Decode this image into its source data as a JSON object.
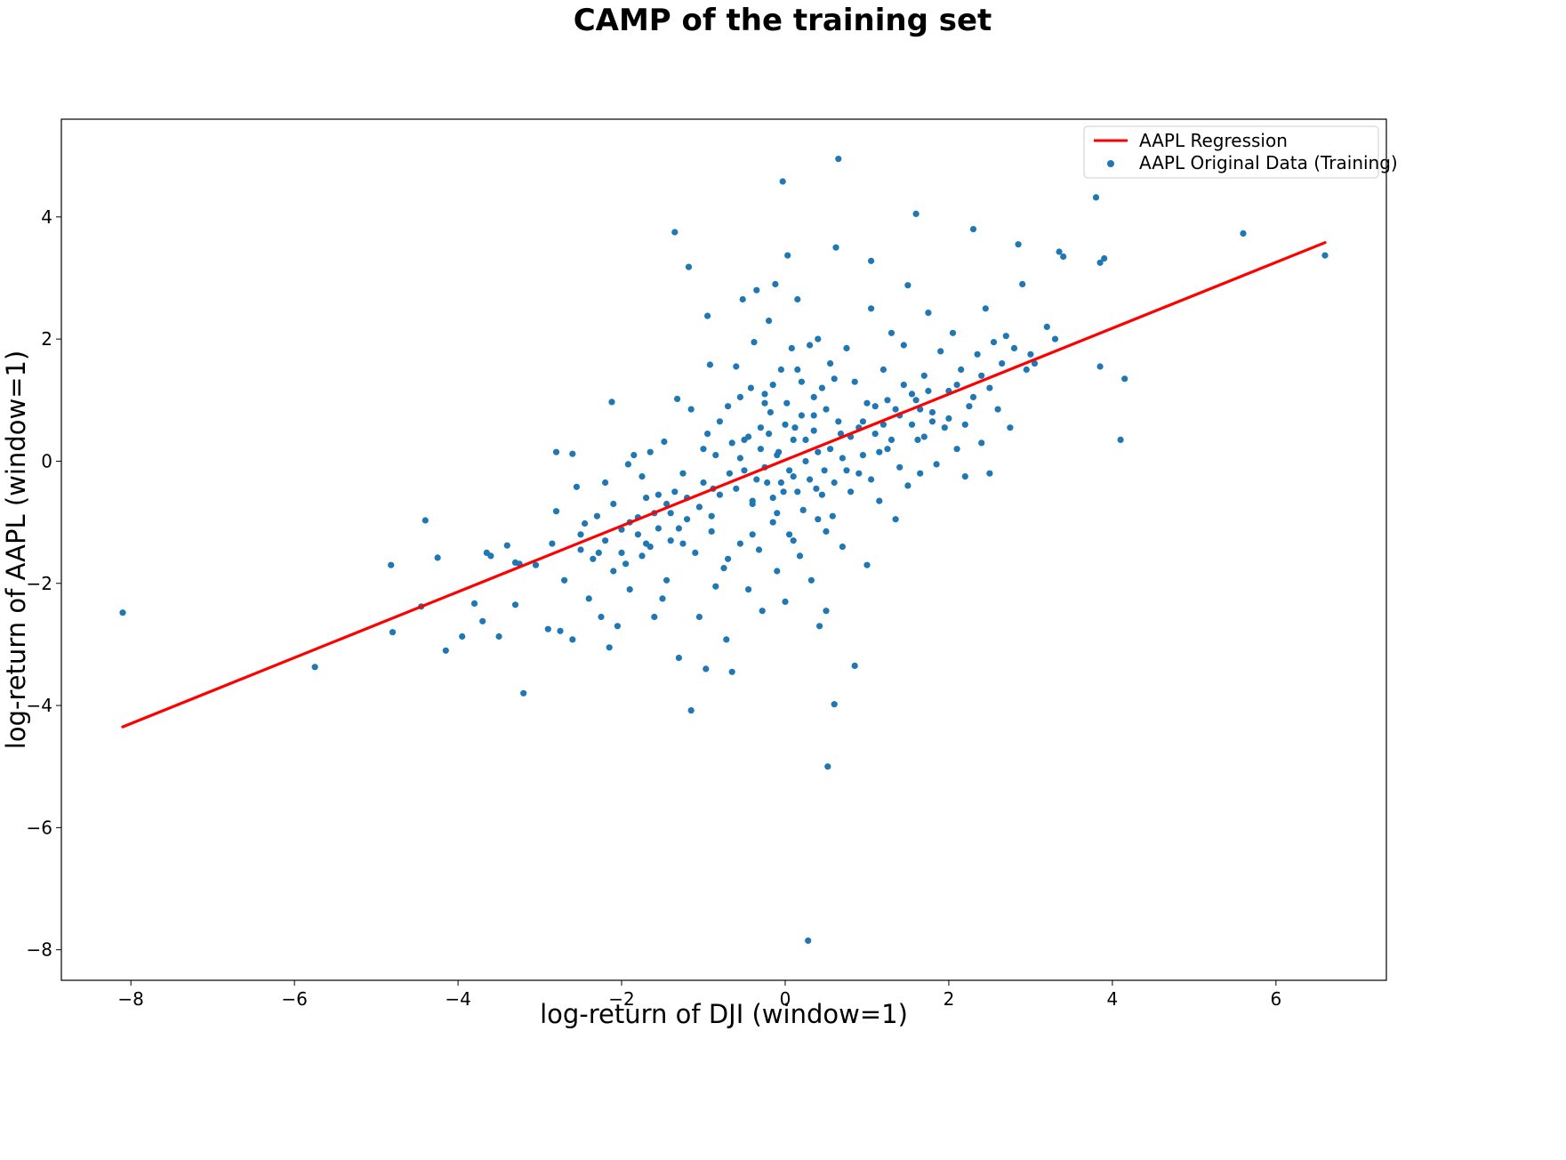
{
  "chart_data": {
    "type": "scatter",
    "title": "CAMP of the training set",
    "xlabel": "log-return of DJI (window=1)",
    "ylabel": "log-return of AAPL (window=1)",
    "xlim": [
      -8.85,
      7.35
    ],
    "ylim": [
      -8.5,
      5.6
    ],
    "xticks": [
      -8,
      -6,
      -4,
      -2,
      0,
      2,
      4,
      6
    ],
    "xtick_labels": [
      "−8",
      "−6",
      "−4",
      "−2",
      "0",
      "2",
      "4",
      "6"
    ],
    "yticks": [
      -8,
      -6,
      -4,
      -2,
      0,
      2,
      4
    ],
    "ytick_labels": [
      "−8",
      "−6",
      "−4",
      "−2",
      "0",
      "2",
      "4"
    ],
    "grid": false,
    "legend_position": "top-right",
    "series": [
      {
        "name": "AAPL Regression",
        "kind": "line",
        "color": "#ff0000",
        "x": [
          -8.1,
          6.6
        ],
        "y": [
          -4.35,
          3.58
        ]
      },
      {
        "name": "AAPL Original Data (Training)",
        "kind": "scatter",
        "color": "#1f77b4",
        "points": [
          [
            -8.1,
            -2.48
          ],
          [
            -5.75,
            -3.37
          ],
          [
            -4.82,
            -1.7
          ],
          [
            -4.8,
            -2.8
          ],
          [
            -4.45,
            -2.38
          ],
          [
            -4.4,
            -0.97
          ],
          [
            -4.25,
            -1.58
          ],
          [
            -4.15,
            -3.1
          ],
          [
            -3.95,
            -2.87
          ],
          [
            -3.8,
            -2.33
          ],
          [
            -3.7,
            -2.62
          ],
          [
            -3.65,
            -1.5
          ],
          [
            -3.6,
            -1.55
          ],
          [
            -3.5,
            -2.87
          ],
          [
            -3.4,
            -1.38
          ],
          [
            -3.3,
            -2.35
          ],
          [
            -3.3,
            -1.66
          ],
          [
            -3.25,
            -1.68
          ],
          [
            -3.2,
            -3.8
          ],
          [
            -3.05,
            -1.7
          ],
          [
            -2.9,
            -2.75
          ],
          [
            -2.85,
            -1.35
          ],
          [
            -2.8,
            0.15
          ],
          [
            -2.8,
            -0.82
          ],
          [
            -2.75,
            -2.78
          ],
          [
            -2.7,
            -1.95
          ],
          [
            -2.6,
            0.12
          ],
          [
            -2.6,
            -2.92
          ],
          [
            -2.55,
            -0.42
          ],
          [
            -2.5,
            -1.2
          ],
          [
            -2.45,
            -1.02
          ],
          [
            -2.4,
            -2.25
          ],
          [
            -2.3,
            -0.9
          ],
          [
            -2.28,
            -1.5
          ],
          [
            -2.25,
            -2.55
          ],
          [
            -2.2,
            -0.35
          ],
          [
            -2.15,
            -3.05
          ],
          [
            -2.12,
            0.97
          ],
          [
            -2.1,
            -1.8
          ],
          [
            -2.05,
            -2.7
          ],
          [
            -2.0,
            -1.12
          ],
          [
            -1.95,
            -1.68
          ],
          [
            -1.92,
            -0.05
          ],
          [
            -1.9,
            -2.1
          ],
          [
            -1.85,
            0.1
          ],
          [
            -1.8,
            -0.92
          ],
          [
            -1.75,
            -0.25
          ],
          [
            -1.7,
            -1.35
          ],
          [
            -1.65,
            0.15
          ],
          [
            -1.6,
            -2.55
          ],
          [
            -1.55,
            -0.55
          ],
          [
            -1.5,
            -2.25
          ],
          [
            -1.48,
            0.32
          ],
          [
            -1.45,
            -1.95
          ],
          [
            -1.4,
            -0.85
          ],
          [
            -1.35,
            3.75
          ],
          [
            -1.32,
            1.02
          ],
          [
            -1.3,
            -3.22
          ],
          [
            -1.25,
            -1.35
          ],
          [
            -1.2,
            -0.6
          ],
          [
            -1.18,
            3.18
          ],
          [
            -1.15,
            -4.08
          ],
          [
            -1.15,
            0.85
          ],
          [
            -1.1,
            -1.5
          ],
          [
            -1.05,
            -2.55
          ],
          [
            -1.0,
            0.2
          ],
          [
            -0.97,
            -3.4
          ],
          [
            -0.95,
            2.38
          ],
          [
            -0.92,
            1.58
          ],
          [
            -0.9,
            -1.15
          ],
          [
            -0.88,
            -0.45
          ],
          [
            -0.85,
            -2.05
          ],
          [
            -0.8,
            0.65
          ],
          [
            -0.75,
            -1.75
          ],
          [
            -0.72,
            -2.92
          ],
          [
            -0.7,
            0.9
          ],
          [
            -0.68,
            -0.2
          ],
          [
            -0.65,
            -3.45
          ],
          [
            -0.6,
            1.55
          ],
          [
            -0.55,
            -1.35
          ],
          [
            -0.52,
            2.65
          ],
          [
            -0.5,
            0.35
          ],
          [
            -0.45,
            -2.1
          ],
          [
            -0.42,
            1.2
          ],
          [
            -0.4,
            -0.7
          ],
          [
            -0.38,
            1.95
          ],
          [
            -0.35,
            2.8
          ],
          [
            -0.32,
            -1.45
          ],
          [
            -0.3,
            0.55
          ],
          [
            -0.28,
            -2.45
          ],
          [
            -0.25,
            1.1
          ],
          [
            -0.22,
            -0.35
          ],
          [
            -0.2,
            2.3
          ],
          [
            -0.18,
            0.8
          ],
          [
            -0.15,
            -1.0
          ],
          [
            -0.12,
            2.9
          ],
          [
            -0.1,
            -1.8
          ],
          [
            -0.08,
            0.15
          ],
          [
            -0.05,
            1.5
          ],
          [
            -0.03,
            4.58
          ],
          [
            -0.02,
            -0.5
          ],
          [
            0.0,
            -2.3
          ],
          [
            0.02,
            0.95
          ],
          [
            0.03,
            3.37
          ],
          [
            0.05,
            -1.2
          ],
          [
            0.08,
            1.85
          ],
          [
            0.1,
            -0.25
          ],
          [
            0.12,
            0.55
          ],
          [
            0.15,
            2.65
          ],
          [
            0.18,
            -1.55
          ],
          [
            0.2,
            1.3
          ],
          [
            0.22,
            -0.8
          ],
          [
            0.25,
            0.35
          ],
          [
            0.28,
            -7.85
          ],
          [
            0.3,
            1.9
          ],
          [
            0.32,
            -1.95
          ],
          [
            0.35,
            0.75
          ],
          [
            0.38,
            -0.45
          ],
          [
            0.4,
            2.0
          ],
          [
            0.42,
            -2.7
          ],
          [
            0.45,
            1.2
          ],
          [
            0.48,
            -0.15
          ],
          [
            0.5,
            -2.45
          ],
          [
            0.52,
            -5.0
          ],
          [
            0.55,
            1.6
          ],
          [
            0.58,
            -0.9
          ],
          [
            0.6,
            -3.98
          ],
          [
            0.62,
            3.5
          ],
          [
            0.65,
            4.95
          ],
          [
            0.68,
            0.45
          ],
          [
            0.7,
            -1.4
          ],
          [
            0.75,
            1.85
          ],
          [
            0.8,
            -0.5
          ],
          [
            0.85,
            -3.35
          ],
          [
            0.85,
            1.3
          ],
          [
            0.9,
            -0.2
          ],
          [
            0.95,
            0.65
          ],
          [
            1.0,
            -1.7
          ],
          [
            1.05,
            3.28
          ],
          [
            1.05,
            2.5
          ],
          [
            1.1,
            0.9
          ],
          [
            1.15,
            -0.65
          ],
          [
            1.2,
            1.5
          ],
          [
            1.25,
            0.2
          ],
          [
            1.3,
            2.1
          ],
          [
            1.35,
            -0.95
          ],
          [
            1.4,
            0.75
          ],
          [
            1.45,
            1.9
          ],
          [
            1.5,
            -0.4
          ],
          [
            1.5,
            2.88
          ],
          [
            1.55,
            1.1
          ],
          [
            1.6,
            4.05
          ],
          [
            1.62,
            0.35
          ],
          [
            1.65,
            -0.2
          ],
          [
            1.7,
            1.4
          ],
          [
            1.75,
            2.43
          ],
          [
            1.8,
            0.8
          ],
          [
            1.85,
            -0.05
          ],
          [
            1.9,
            1.8
          ],
          [
            1.95,
            0.55
          ],
          [
            2.0,
            1.15
          ],
          [
            2.05,
            2.1
          ],
          [
            2.1,
            0.2
          ],
          [
            2.15,
            1.5
          ],
          [
            2.2,
            -0.25
          ],
          [
            2.25,
            0.9
          ],
          [
            2.3,
            3.8
          ],
          [
            2.35,
            1.75
          ],
          [
            2.4,
            0.3
          ],
          [
            2.45,
            2.5
          ],
          [
            2.5,
            -0.2
          ],
          [
            2.55,
            1.95
          ],
          [
            2.6,
            0.85
          ],
          [
            2.65,
            1.6
          ],
          [
            2.7,
            2.05
          ],
          [
            2.75,
            0.55
          ],
          [
            2.8,
            1.85
          ],
          [
            2.85,
            3.55
          ],
          [
            2.9,
            2.9
          ],
          [
            2.95,
            1.5
          ],
          [
            3.0,
            1.75
          ],
          [
            3.05,
            1.6
          ],
          [
            3.2,
            2.2
          ],
          [
            3.3,
            2.0
          ],
          [
            3.35,
            3.43
          ],
          [
            3.4,
            3.35
          ],
          [
            3.8,
            4.32
          ],
          [
            3.85,
            3.25
          ],
          [
            3.85,
            1.55
          ],
          [
            3.9,
            3.32
          ],
          [
            4.1,
            0.35
          ],
          [
            4.15,
            1.35
          ],
          [
            5.6,
            3.73
          ],
          [
            6.6,
            3.37
          ],
          [
            -0.35,
            -0.3
          ],
          [
            -0.3,
            0.2
          ],
          [
            -0.25,
            -0.1
          ],
          [
            -0.2,
            0.45
          ],
          [
            -0.15,
            -0.6
          ],
          [
            -0.1,
            0.1
          ],
          [
            -0.05,
            -0.35
          ],
          [
            0.0,
            0.6
          ],
          [
            0.05,
            -0.15
          ],
          [
            0.1,
            0.35
          ],
          [
            0.15,
            -0.5
          ],
          [
            0.2,
            0.75
          ],
          [
            0.25,
            0.0
          ],
          [
            0.3,
            -0.3
          ],
          [
            0.35,
            0.5
          ],
          [
            0.4,
            0.15
          ],
          [
            0.45,
            -0.55
          ],
          [
            0.5,
            0.85
          ],
          [
            -0.5,
            -0.15
          ],
          [
            -0.45,
            0.4
          ],
          [
            -0.4,
            -0.65
          ],
          [
            -0.55,
            0.05
          ],
          [
            -0.6,
            -0.45
          ],
          [
            -0.65,
            0.3
          ],
          [
            0.55,
            0.2
          ],
          [
            0.6,
            -0.35
          ],
          [
            0.65,
            0.65
          ],
          [
            0.7,
            0.05
          ],
          [
            0.75,
            -0.15
          ],
          [
            0.8,
            0.4
          ],
          [
            -0.8,
            -0.55
          ],
          [
            -0.85,
            0.1
          ],
          [
            -0.9,
            -0.9
          ],
          [
            -0.95,
            0.45
          ],
          [
            -1.0,
            -0.35
          ],
          [
            -1.05,
            -0.75
          ],
          [
            0.9,
            0.55
          ],
          [
            0.95,
            0.1
          ],
          [
            1.0,
            0.95
          ],
          [
            1.05,
            -0.3
          ],
          [
            1.1,
            0.45
          ],
          [
            1.15,
            0.15
          ],
          [
            -1.2,
            -0.95
          ],
          [
            -1.25,
            -0.2
          ],
          [
            -1.3,
            -1.1
          ],
          [
            -1.35,
            -0.5
          ],
          [
            -1.4,
            -1.3
          ],
          [
            -1.45,
            -0.7
          ],
          [
            1.2,
            0.6
          ],
          [
            1.25,
            1.0
          ],
          [
            1.3,
            0.35
          ],
          [
            1.35,
            0.85
          ],
          [
            1.4,
            -0.1
          ],
          [
            1.45,
            1.25
          ],
          [
            -1.55,
            -1.1
          ],
          [
            -1.6,
            -0.85
          ],
          [
            -1.65,
            -1.4
          ],
          [
            -1.7,
            -0.6
          ],
          [
            -1.75,
            -1.55
          ],
          [
            -1.8,
            -1.2
          ],
          [
            1.55,
            0.6
          ],
          [
            1.6,
            1.0
          ],
          [
            1.65,
            0.85
          ],
          [
            1.7,
            0.4
          ],
          [
            1.75,
            1.15
          ],
          [
            1.8,
            0.65
          ],
          [
            -0.15,
            1.25
          ],
          [
            0.1,
            -1.3
          ],
          [
            0.35,
            1.05
          ],
          [
            -0.4,
            -1.2
          ],
          [
            0.6,
            1.35
          ],
          [
            -0.7,
            -1.6
          ],
          [
            -0.25,
            0.95
          ],
          [
            0.4,
            -0.95
          ],
          [
            -0.1,
            -0.85
          ],
          [
            0.15,
            1.5
          ],
          [
            0.5,
            -1.15
          ],
          [
            -0.55,
            1.05
          ],
          [
            -1.9,
            -1.0
          ],
          [
            -2.0,
            -1.5
          ],
          [
            -2.1,
            -0.7
          ],
          [
            -2.2,
            -1.3
          ],
          [
            -2.35,
            -1.6
          ],
          [
            -2.5,
            -1.45
          ],
          [
            2.0,
            0.7
          ],
          [
            2.1,
            1.25
          ],
          [
            2.2,
            0.6
          ],
          [
            2.3,
            1.05
          ],
          [
            2.4,
            1.4
          ],
          [
            2.5,
            1.2
          ]
        ]
      }
    ]
  }
}
